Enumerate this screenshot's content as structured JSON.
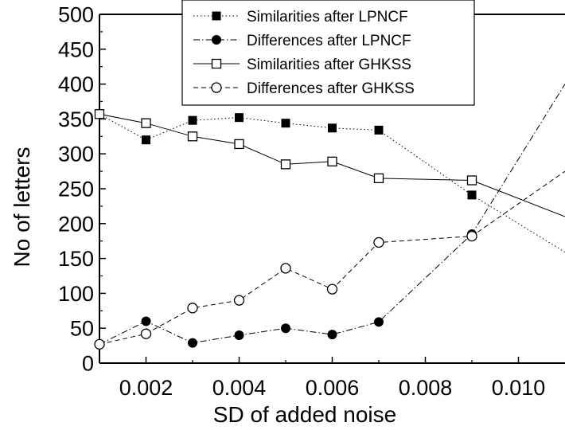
{
  "chart_data": {
    "type": "line",
    "xlabel": "SD of added noise",
    "ylabel": "No of letters",
    "xlim": [
      0.001,
      0.011
    ],
    "ylim": [
      0,
      500
    ],
    "x_ticks": [
      0.002,
      0.004,
      0.006,
      0.008,
      0.01
    ],
    "x_tick_labels": [
      "0.002",
      "0.004",
      "0.006",
      "0.008",
      "0.010"
    ],
    "y_ticks": [
      0,
      50,
      100,
      150,
      200,
      250,
      300,
      350,
      400,
      450,
      500
    ],
    "y_tick_labels": [
      "0",
      "50",
      "100",
      "150",
      "200",
      "250",
      "300",
      "350",
      "400",
      "450",
      "500"
    ],
    "legend_position": "top-center",
    "series": [
      {
        "name": "Similarities after LPNCF",
        "style": "dotted",
        "marker": "square-filled",
        "x": [
          0.001,
          0.002,
          0.003,
          0.004,
          0.005,
          0.006,
          0.007,
          0.009,
          0.011
        ],
        "y": [
          357,
          320,
          348,
          352,
          344,
          337,
          334,
          241,
          159
        ],
        "markers_at": [
          0,
          1,
          2,
          3,
          4,
          5,
          6,
          7
        ]
      },
      {
        "name": "Differences after LPNCF",
        "style": "dashdot",
        "marker": "circle-filled",
        "x": [
          0.001,
          0.002,
          0.003,
          0.004,
          0.005,
          0.006,
          0.007,
          0.009,
          0.011
        ],
        "y": [
          27,
          60,
          29,
          40,
          50,
          41,
          59,
          185,
          400
        ],
        "markers_at": [
          0,
          1,
          2,
          3,
          4,
          5,
          6,
          7
        ]
      },
      {
        "name": "Similarities after GHKSS",
        "style": "solid",
        "marker": "square-open",
        "x": [
          0.001,
          0.002,
          0.003,
          0.004,
          0.005,
          0.006,
          0.007,
          0.009,
          0.011
        ],
        "y": [
          357,
          344,
          325,
          314,
          285,
          289,
          265,
          262,
          210
        ],
        "markers_at": [
          0,
          1,
          2,
          3,
          4,
          5,
          6,
          7
        ]
      },
      {
        "name": "Differences after GHKSS",
        "style": "dashed",
        "marker": "circle-open",
        "x": [
          0.001,
          0.002,
          0.003,
          0.004,
          0.005,
          0.006,
          0.007,
          0.009,
          0.011
        ],
        "y": [
          27,
          42,
          79,
          90,
          136,
          106,
          173,
          182,
          275
        ],
        "markers_at": [
          0,
          1,
          2,
          3,
          4,
          5,
          6,
          7
        ]
      }
    ]
  }
}
